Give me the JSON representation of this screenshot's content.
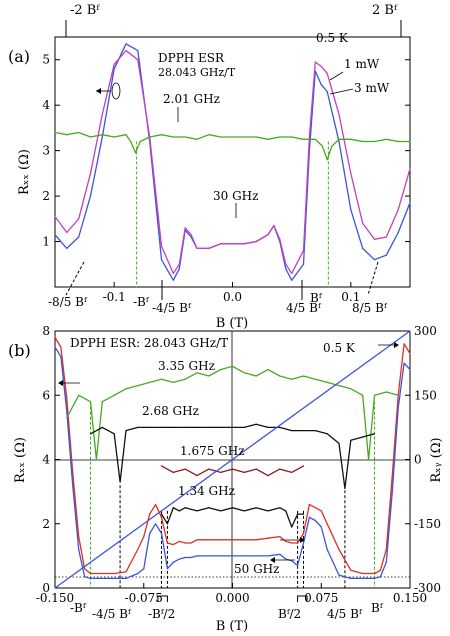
{
  "figure": {
    "panels": [
      {
        "label": "(a)",
        "ylabel": "Rₓₓ (Ω)",
        "xlabel": "B (T)",
        "top_ticks": [
          "-2 Bᶠ",
          "2 Bᶠ"
        ],
        "x_ticks": [
          "-0.1",
          "0.0",
          "0.1"
        ],
        "y_ticks": [
          "1",
          "2",
          "3",
          "4",
          "5"
        ],
        "annotations": [
          "0.5 K",
          "DPPH ESR",
          "28.043 GHz/T",
          "1 mW",
          "3 mW",
          "2.01 GHz",
          "30 GHz"
        ],
        "bottom_marks": [
          "-8/5 Bᶠ",
          "-Bᶠ",
          "-4/5 Bᶠ",
          "4/5 Bᶠ",
          "Bᶠ",
          "8/5 Bᶠ"
        ]
      },
      {
        "label": "(b)",
        "ylabel": "Rₓₓ (Ω)",
        "ylabel_right": "Rₓᵧ (Ω)",
        "xlabel": "B (T)",
        "x_ticks": [
          "-0.150",
          "-0.075",
          "0.000",
          "0.075",
          "0.150"
        ],
        "y_ticks": [
          "0",
          "2",
          "4",
          "6",
          "8"
        ],
        "y_ticks_right": [
          "-300",
          "-150",
          "0",
          "150",
          "300"
        ],
        "annotations": [
          "DPPH ESR: 28.043 GHz/T",
          "0.5 K",
          "3.35 GHz",
          "2.68 GHz",
          "1.675 GHz",
          "1.34 GHz",
          "50 GHz"
        ],
        "bottom_marks": [
          "-Bᶠ",
          "-4/5 Bᶠ",
          "-Bᶠ/2",
          "Bᶠ/2",
          "4/5 Bᶠ",
          "Bᶠ"
        ]
      }
    ]
  },
  "chart_data": [
    {
      "type": "line",
      "panel": "(a)",
      "xlabel": "B (T)",
      "ylabel": "Rxx (Ω)",
      "xlim": [
        -0.15,
        0.15
      ],
      "ylim": [
        0,
        5.5
      ],
      "series": [
        {
          "name": "1 mW",
          "color": "#3b55d9",
          "x": [
            -0.15,
            -0.14,
            -0.13,
            -0.12,
            -0.11,
            -0.1,
            -0.09,
            -0.08,
            -0.07,
            -0.06,
            -0.05,
            -0.045,
            -0.04,
            -0.035,
            -0.03,
            -0.02,
            -0.01,
            0.0,
            0.01,
            0.02,
            0.03,
            0.035,
            0.04,
            0.045,
            0.05,
            0.06,
            0.065,
            0.07,
            0.075,
            0.08,
            0.09,
            0.1,
            0.11,
            0.12,
            0.13,
            0.14,
            0.15
          ],
          "y": [
            1.15,
            0.85,
            1.1,
            2.0,
            3.3,
            4.8,
            5.35,
            5.2,
            3.2,
            0.6,
            0.15,
            0.4,
            1.25,
            1.1,
            0.85,
            0.85,
            0.95,
            0.95,
            0.95,
            1.0,
            1.15,
            1.35,
            1.0,
            0.4,
            0.15,
            0.5,
            3.0,
            4.75,
            4.45,
            4.3,
            3.2,
            1.7,
            0.85,
            0.6,
            0.7,
            1.2,
            1.85
          ]
        },
        {
          "name": "3 mW",
          "color": "#c040c0",
          "x": [
            -0.15,
            -0.14,
            -0.13,
            -0.12,
            -0.11,
            -0.1,
            -0.09,
            -0.08,
            -0.07,
            -0.06,
            -0.05,
            -0.045,
            -0.04,
            -0.035,
            -0.03,
            -0.02,
            -0.01,
            0.0,
            0.01,
            0.02,
            0.03,
            0.035,
            0.04,
            0.045,
            0.05,
            0.06,
            0.065,
            0.07,
            0.075,
            0.08,
            0.09,
            0.1,
            0.11,
            0.12,
            0.13,
            0.14,
            0.15
          ],
          "y": [
            1.55,
            1.2,
            1.5,
            2.5,
            3.8,
            4.9,
            5.2,
            5.0,
            3.3,
            0.9,
            0.3,
            0.5,
            1.3,
            1.15,
            0.85,
            0.85,
            0.95,
            0.95,
            0.95,
            1.0,
            1.15,
            1.35,
            1.05,
            0.5,
            0.3,
            0.8,
            3.3,
            4.95,
            4.85,
            4.7,
            3.8,
            2.5,
            1.4,
            1.05,
            1.1,
            1.7,
            2.6
          ]
        },
        {
          "name": "2.01 GHz",
          "color": "#44aa22",
          "x": [
            -0.15,
            -0.14,
            -0.13,
            -0.12,
            -0.11,
            -0.1,
            -0.09,
            -0.086,
            -0.082,
            -0.078,
            -0.07,
            -0.06,
            -0.05,
            -0.04,
            -0.03,
            -0.02,
            -0.01,
            0.0,
            0.01,
            0.02,
            0.03,
            0.04,
            0.05,
            0.06,
            0.07,
            0.076,
            0.08,
            0.084,
            0.09,
            0.1,
            0.11,
            0.12,
            0.13,
            0.14,
            0.15
          ],
          "y": [
            3.4,
            3.35,
            3.4,
            3.3,
            3.35,
            3.3,
            3.35,
            3.2,
            2.95,
            3.2,
            3.3,
            3.35,
            3.3,
            3.3,
            3.25,
            3.35,
            3.3,
            3.3,
            3.3,
            3.3,
            3.25,
            3.3,
            3.3,
            3.25,
            3.25,
            3.1,
            2.8,
            3.1,
            3.25,
            3.25,
            3.2,
            3.2,
            3.25,
            3.2,
            3.2
          ]
        }
      ]
    },
    {
      "type": "line",
      "panel": "(b)",
      "xlabel": "B (T)",
      "ylabel": "Rxx (Ω)",
      "ylabel_right": "Rxy (Ω)",
      "xlim": [
        -0.15,
        0.15
      ],
      "ylim": [
        0,
        8
      ],
      "ylim_right": [
        -300,
        300
      ],
      "series": [
        {
          "name": "50 GHz",
          "color": "#e03020",
          "x": [
            -0.15,
            -0.145,
            -0.14,
            -0.135,
            -0.13,
            -0.125,
            -0.12,
            -0.115,
            -0.11,
            -0.1,
            -0.09,
            -0.08,
            -0.075,
            -0.07,
            -0.065,
            -0.06,
            -0.055,
            -0.05,
            -0.045,
            -0.04,
            -0.035,
            -0.03,
            -0.02,
            -0.01,
            0.0,
            0.01,
            0.02,
            0.03,
            0.04,
            0.045,
            0.05,
            0.055,
            0.06,
            0.065,
            0.07,
            0.075,
            0.08,
            0.09,
            0.1,
            0.11,
            0.115,
            0.12,
            0.125,
            0.13,
            0.135,
            0.14,
            0.145,
            0.15
          ],
          "y": [
            7.8,
            7.5,
            5.9,
            3.6,
            1.6,
            0.6,
            0.45,
            0.45,
            0.45,
            0.45,
            0.5,
            1.2,
            1.6,
            2.3,
            2.6,
            2.2,
            1.4,
            1.35,
            1.45,
            1.4,
            1.4,
            1.5,
            1.5,
            1.5,
            1.5,
            1.5,
            1.5,
            1.55,
            1.6,
            1.45,
            1.4,
            1.4,
            1.7,
            2.6,
            2.5,
            2.4,
            2.0,
            1.2,
            0.55,
            0.45,
            0.45,
            0.45,
            0.55,
            1.2,
            3.5,
            6.0,
            7.6,
            7.3
          ]
        },
        {
          "name": "Rxx (blue)",
          "color": "#3b55d9",
          "x": [
            -0.15,
            -0.145,
            -0.14,
            -0.135,
            -0.13,
            -0.125,
            -0.12,
            -0.115,
            -0.11,
            -0.1,
            -0.09,
            -0.08,
            -0.075,
            -0.07,
            -0.065,
            -0.06,
            -0.055,
            -0.05,
            -0.045,
            -0.04,
            -0.035,
            -0.03,
            -0.02,
            -0.01,
            0.0,
            0.01,
            0.02,
            0.03,
            0.04,
            0.045,
            0.05,
            0.055,
            0.06,
            0.065,
            0.07,
            0.075,
            0.08,
            0.09,
            0.1,
            0.11,
            0.115,
            0.12,
            0.125,
            0.13,
            0.135,
            0.14,
            0.145,
            0.15
          ],
          "y": [
            7.5,
            7.2,
            5.5,
            3.2,
            1.2,
            0.35,
            0.3,
            0.3,
            0.3,
            0.3,
            0.3,
            0.45,
            0.6,
            1.7,
            2.0,
            1.7,
            0.6,
            0.8,
            0.9,
            0.95,
            0.95,
            1.0,
            1.0,
            1.0,
            1.0,
            1.0,
            1.0,
            1.0,
            1.05,
            0.9,
            0.85,
            0.7,
            1.4,
            2.2,
            2.1,
            1.9,
            1.2,
            0.4,
            0.3,
            0.3,
            0.3,
            0.3,
            0.35,
            0.8,
            3.0,
            5.6,
            7.0,
            6.8
          ]
        },
        {
          "name": "3.35 GHz",
          "color": "#44aa22",
          "x": [
            -0.14,
            -0.13,
            -0.12,
            -0.115,
            -0.11,
            -0.1,
            -0.09,
            -0.08,
            -0.07,
            -0.06,
            -0.05,
            -0.04,
            -0.03,
            -0.02,
            -0.01,
            0.0,
            0.01,
            0.02,
            0.03,
            0.04,
            0.05,
            0.06,
            0.07,
            0.08,
            0.09,
            0.1,
            0.11,
            0.115,
            0.12,
            0.13,
            0.14
          ],
          "y": [
            5.3,
            6.0,
            5.8,
            4.0,
            5.8,
            6.0,
            6.2,
            6.3,
            6.4,
            6.5,
            6.4,
            6.5,
            6.7,
            6.6,
            6.8,
            6.9,
            6.7,
            6.6,
            6.8,
            6.6,
            6.5,
            6.6,
            6.5,
            6.4,
            6.3,
            6.2,
            6.0,
            4.0,
            6.0,
            6.1,
            6.0
          ]
        },
        {
          "name": "2.68 GHz",
          "color": "#111111",
          "x": [
            -0.12,
            -0.11,
            -0.1,
            -0.095,
            -0.09,
            -0.08,
            -0.07,
            -0.06,
            -0.05,
            -0.04,
            -0.03,
            -0.02,
            -0.01,
            0.0,
            0.01,
            0.02,
            0.03,
            0.04,
            0.05,
            0.06,
            0.07,
            0.08,
            0.09,
            0.095,
            0.1,
            0.11,
            0.12
          ],
          "y": [
            4.8,
            5.0,
            4.8,
            3.3,
            4.9,
            5.0,
            5.0,
            5.0,
            5.0,
            5.0,
            5.0,
            5.0,
            5.0,
            5.0,
            5.0,
            5.1,
            5.0,
            5.0,
            4.9,
            4.9,
            4.9,
            4.8,
            4.5,
            3.1,
            4.6,
            4.7,
            4.8
          ]
        },
        {
          "name": "1.675 GHz",
          "color": "#8b1a1a",
          "x": [
            -0.06,
            -0.05,
            -0.04,
            -0.03,
            -0.02,
            -0.01,
            0.0,
            0.01,
            0.02,
            0.03,
            0.04,
            0.05,
            0.06
          ],
          "y": [
            3.8,
            3.6,
            3.7,
            3.5,
            3.7,
            3.6,
            3.7,
            3.6,
            3.7,
            3.5,
            3.7,
            3.6,
            3.8
          ]
        },
        {
          "name": "1.34 GHz",
          "color": "#111111",
          "x": [
            -0.06,
            -0.055,
            -0.05,
            -0.045,
            -0.04,
            -0.03,
            -0.02,
            -0.01,
            0.0,
            0.01,
            0.02,
            0.03,
            0.04,
            0.045,
            0.05,
            0.055,
            0.06
          ],
          "y": [
            2.3,
            2.0,
            2.5,
            2.4,
            2.5,
            2.4,
            2.5,
            2.4,
            2.5,
            2.4,
            2.5,
            2.4,
            2.5,
            2.4,
            1.9,
            2.3,
            2.3
          ]
        },
        {
          "name": "Rxy",
          "color": "#3b55d9",
          "axis": "right",
          "x": [
            -0.15,
            0.15
          ],
          "y": [
            -300,
            300
          ]
        }
      ]
    }
  ]
}
